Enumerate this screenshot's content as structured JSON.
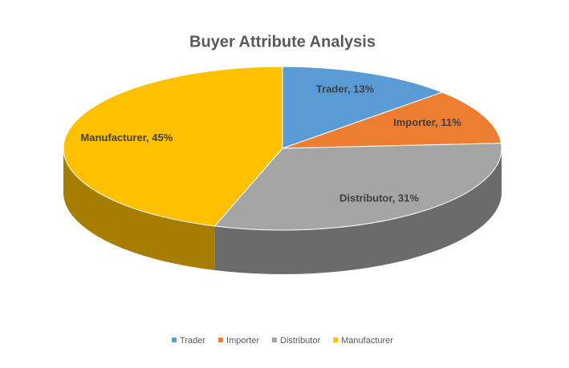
{
  "chart_data": {
    "type": "pie",
    "title": "Buyer Attribute Analysis",
    "categories": [
      "Trader",
      "Importer",
      "Distributor",
      "Manufacturer"
    ],
    "values": [
      13,
      11,
      31,
      45
    ],
    "value_labels": [
      "Trader, 13%",
      "Importer, 11%",
      "Distributor, 31%",
      "Manufacturer, 45%"
    ],
    "colors": [
      "#5b9bd5",
      "#ed7d31",
      "#a5a5a5",
      "#ffc000"
    ],
    "legend": "bottom"
  }
}
